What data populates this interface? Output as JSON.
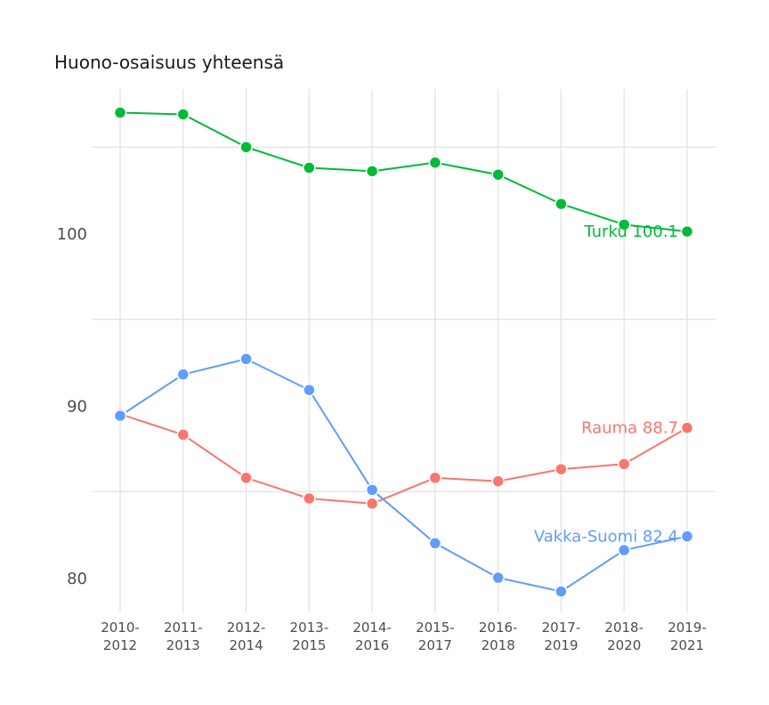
{
  "chart_data": {
    "type": "line",
    "title": "Huono-osaisuus yhteensä",
    "xlabel": "",
    "ylabel": "",
    "ylim": [
      78.7,
      108.2
    ],
    "y_ticks": [
      80,
      90,
      100
    ],
    "y_minor_gridlines": [
      85,
      95,
      105
    ],
    "grid": true,
    "legend": "none (direct end labels)",
    "categories": [
      [
        "2010-",
        "2012"
      ],
      [
        "2011-",
        "2013"
      ],
      [
        "2012-",
        "2014"
      ],
      [
        "2013-",
        "2015"
      ],
      [
        "2014-",
        "2016"
      ],
      [
        "2015-",
        "2017"
      ],
      [
        "2016-",
        "2018"
      ],
      [
        "2017-",
        "2019"
      ],
      [
        "2018-",
        "2020"
      ],
      [
        "2019-",
        "2021"
      ]
    ],
    "series": [
      {
        "name": "Turku",
        "color": "#00BA38",
        "values": [
          107.0,
          106.9,
          105.0,
          103.8,
          103.6,
          104.1,
          103.4,
          101.7,
          100.5,
          100.1
        ],
        "end_label": "Turku 100.1"
      },
      {
        "name": "Rauma",
        "color": "#F8766D",
        "values": [
          89.5,
          88.3,
          85.8,
          84.6,
          84.3,
          85.8,
          85.6,
          86.3,
          86.6,
          88.7
        ],
        "end_label": "Rauma 88.7"
      },
      {
        "name": "Vakka-Suomi",
        "color": "#619CFF",
        "values": [
          89.4,
          91.8,
          92.7,
          90.9,
          85.1,
          82.0,
          80.0,
          79.2,
          81.6,
          82.4
        ],
        "end_label": "Vakka-Suomi 82.4"
      }
    ]
  }
}
